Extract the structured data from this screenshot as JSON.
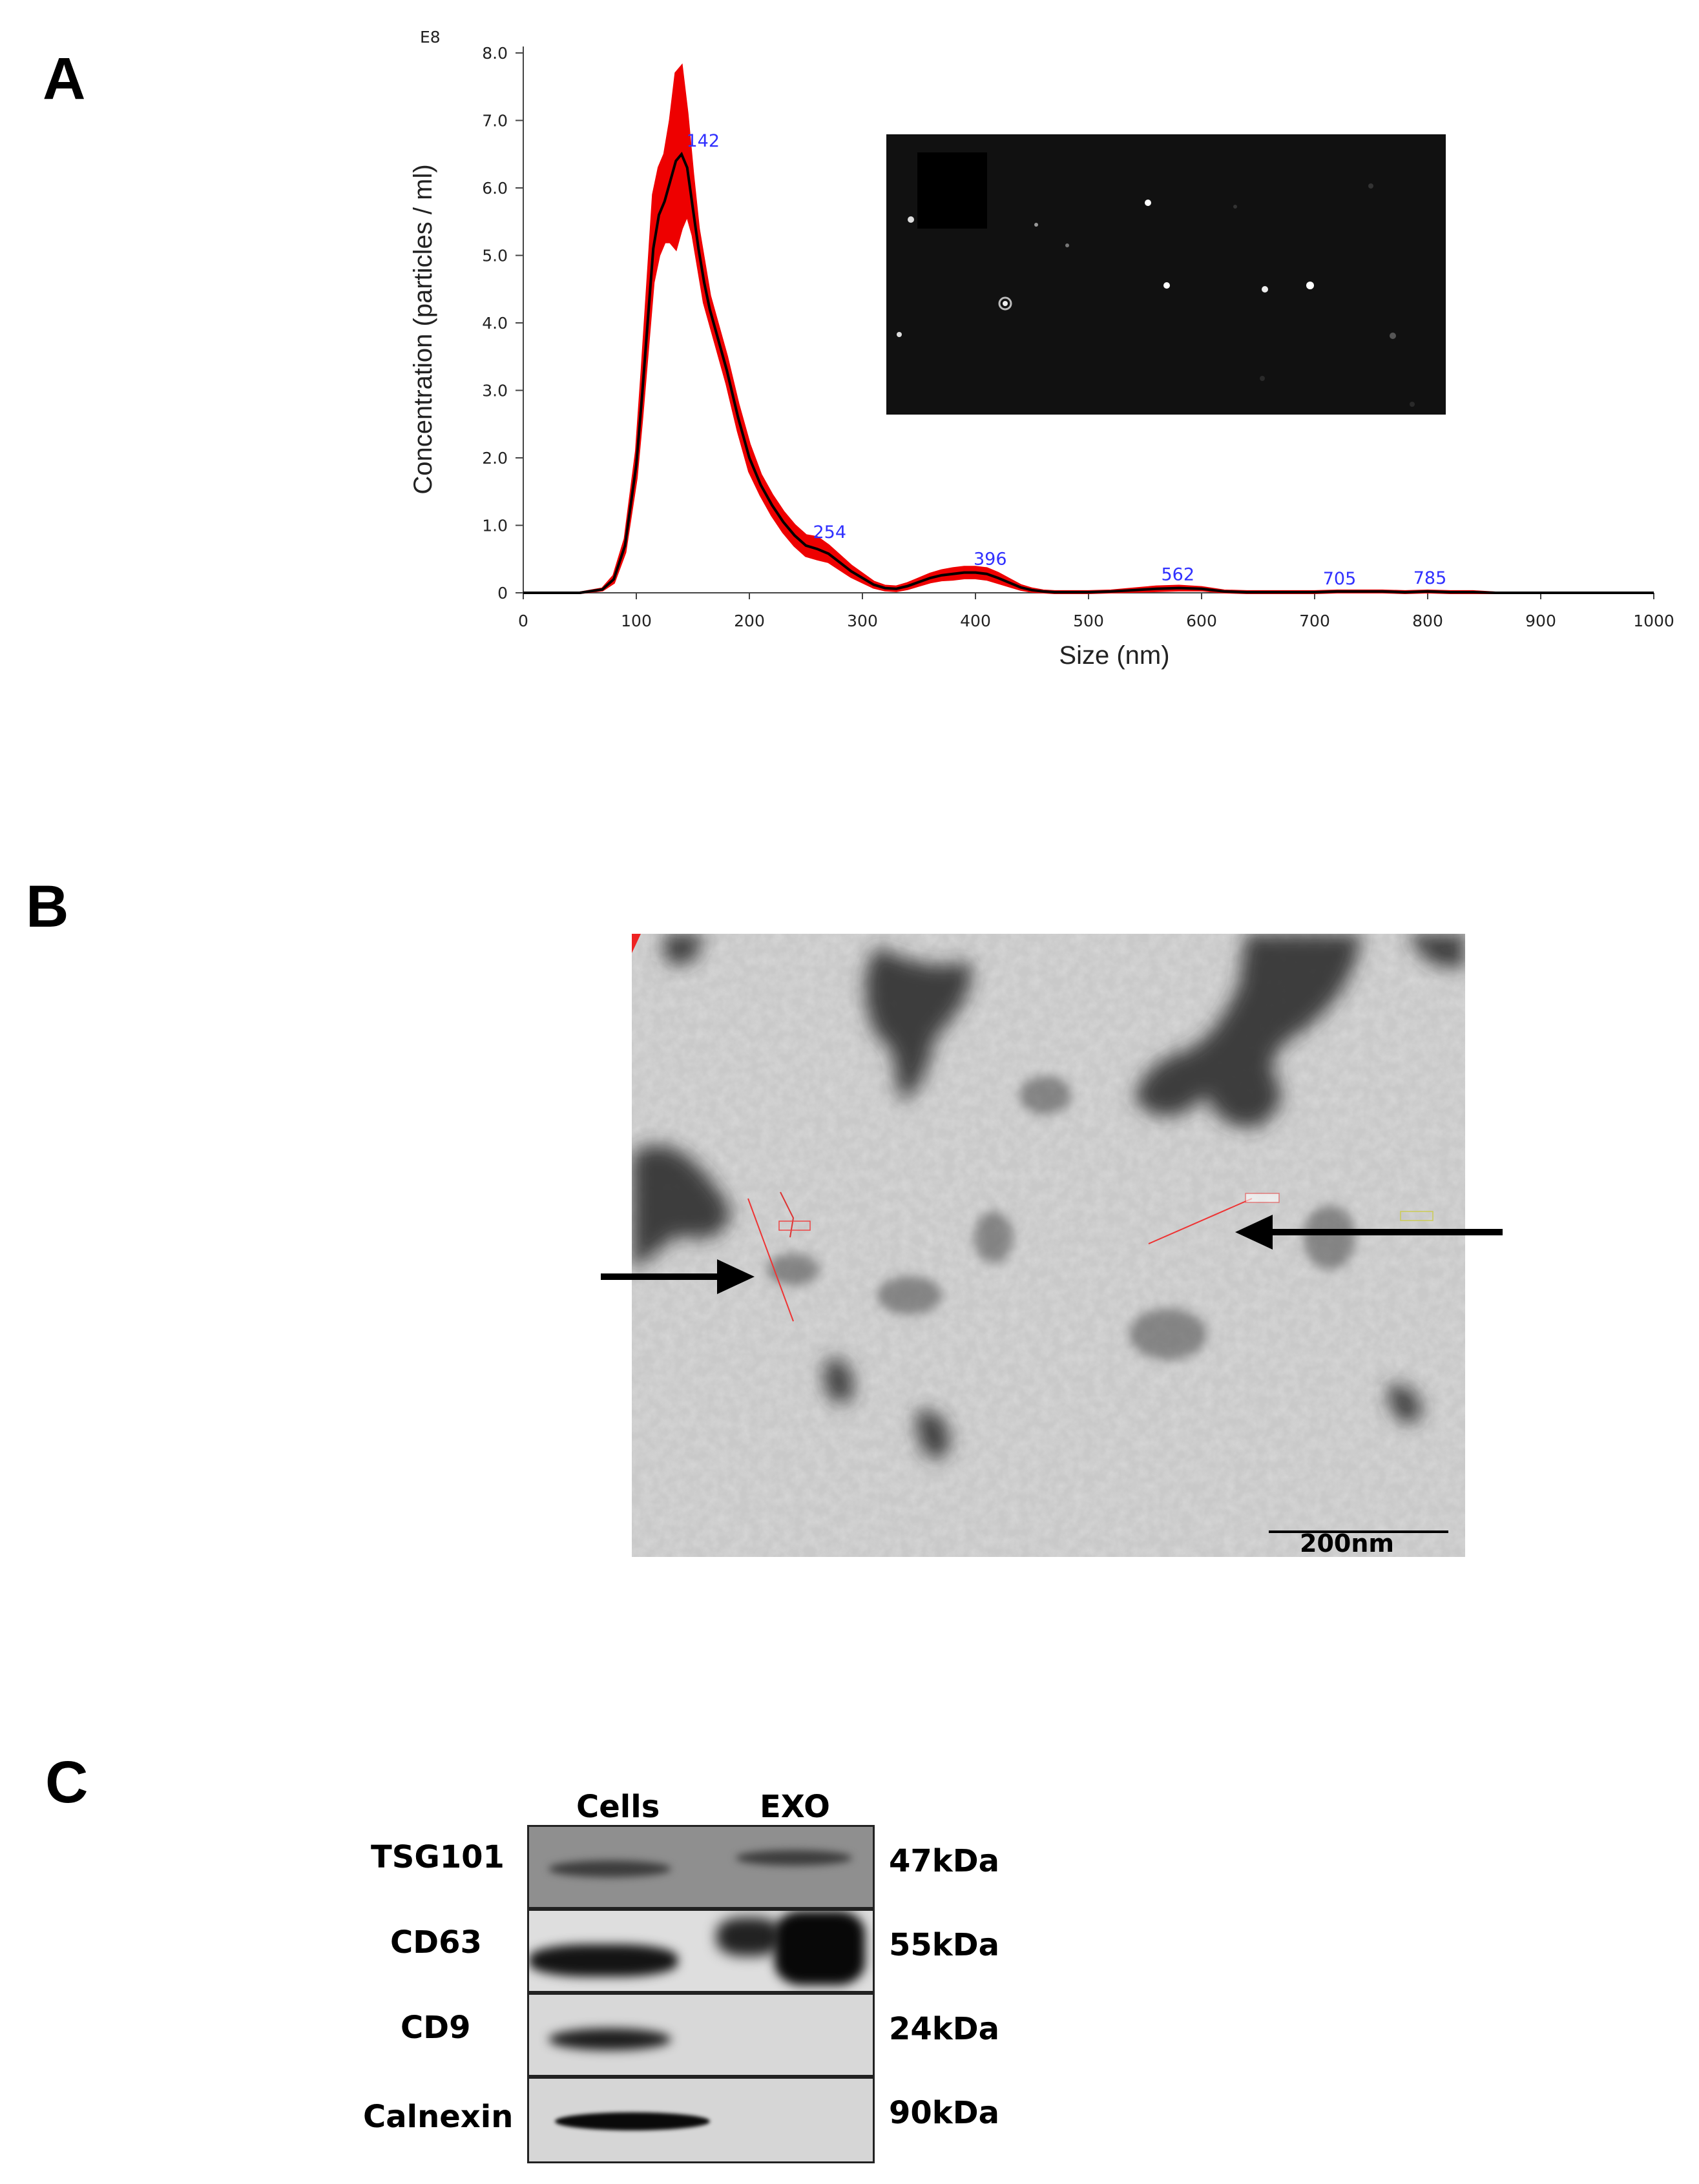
{
  "panel_labels": {
    "a": "A",
    "b": "B",
    "c": "C"
  },
  "chart_data": {
    "type": "line",
    "exponent_label": "E8",
    "xlabel": "Size (nm)",
    "ylabel": "Concentration (particles / ml)",
    "xlim": [
      0,
      1000
    ],
    "ylim": [
      0,
      8.0
    ],
    "x_ticks": [
      "0",
      "100",
      "200",
      "300",
      "400",
      "500",
      "600",
      "700",
      "800",
      "900",
      "1000"
    ],
    "y_ticks": [
      "0",
      "1.0",
      "2.0",
      "3.0",
      "4.0",
      "5.0",
      "6.0",
      "7.0",
      "8.0"
    ],
    "grid": false,
    "line_color": "#000000",
    "band_color": "#ee0000",
    "x": [
      0,
      50,
      70,
      80,
      90,
      100,
      105,
      110,
      115,
      120,
      125,
      130,
      135,
      140,
      145,
      150,
      155,
      160,
      165,
      170,
      180,
      190,
      200,
      210,
      220,
      230,
      240,
      250,
      260,
      270,
      280,
      290,
      300,
      310,
      320,
      330,
      340,
      350,
      360,
      370,
      380,
      390,
      400,
      410,
      420,
      430,
      440,
      450,
      460,
      470,
      480,
      500,
      520,
      540,
      560,
      580,
      600,
      620,
      640,
      660,
      680,
      700,
      720,
      740,
      760,
      780,
      800,
      820,
      840,
      860,
      880,
      900,
      950,
      1000
    ],
    "y": [
      0,
      0,
      0.05,
      0.2,
      0.7,
      1.9,
      2.9,
      4.0,
      5.1,
      5.6,
      5.8,
      6.1,
      6.4,
      6.5,
      6.3,
      5.7,
      5.1,
      4.6,
      4.2,
      3.9,
      3.3,
      2.6,
      2.0,
      1.6,
      1.3,
      1.05,
      0.85,
      0.7,
      0.65,
      0.58,
      0.45,
      0.32,
      0.22,
      0.12,
      0.07,
      0.06,
      0.1,
      0.16,
      0.22,
      0.26,
      0.28,
      0.3,
      0.3,
      0.28,
      0.22,
      0.15,
      0.08,
      0.04,
      0.02,
      0.01,
      0.01,
      0.01,
      0.02,
      0.04,
      0.06,
      0.07,
      0.06,
      0.02,
      0.01,
      0.01,
      0.01,
      0.01,
      0.02,
      0.02,
      0.02,
      0.01,
      0.02,
      0.01,
      0.01,
      0,
      0,
      0,
      0,
      0
    ],
    "y_upper": [
      0,
      0,
      0.06,
      0.25,
      0.8,
      2.1,
      3.3,
      4.6,
      5.9,
      6.3,
      6.5,
      7.0,
      7.7,
      7.8,
      7.1,
      6.2,
      5.4,
      4.9,
      4.4,
      4.1,
      3.5,
      2.8,
      2.2,
      1.75,
      1.45,
      1.2,
      1.0,
      0.85,
      0.82,
      0.7,
      0.55,
      0.4,
      0.28,
      0.16,
      0.1,
      0.09,
      0.14,
      0.21,
      0.28,
      0.33,
      0.36,
      0.38,
      0.38,
      0.36,
      0.29,
      0.2,
      0.11,
      0.06,
      0.03,
      0.02,
      0.02,
      0.02,
      0.03,
      0.06,
      0.09,
      0.1,
      0.08,
      0.03,
      0.02,
      0.02,
      0.02,
      0.02,
      0.03,
      0.03,
      0.03,
      0.02,
      0.03,
      0.02,
      0.02,
      0,
      0,
      0,
      0,
      0
    ],
    "y_lower": [
      0,
      0,
      0.04,
      0.15,
      0.6,
      1.7,
      2.6,
      3.6,
      4.6,
      5.0,
      5.2,
      5.2,
      5.1,
      5.4,
      5.6,
      5.3,
      4.8,
      4.3,
      4.0,
      3.7,
      3.1,
      2.4,
      1.8,
      1.45,
      1.15,
      0.9,
      0.7,
      0.55,
      0.5,
      0.46,
      0.35,
      0.24,
      0.16,
      0.08,
      0.04,
      0.03,
      0.06,
      0.11,
      0.16,
      0.19,
      0.2,
      0.22,
      0.22,
      0.2,
      0.15,
      0.1,
      0.05,
      0.02,
      0.01,
      0,
      0,
      0,
      0.01,
      0.02,
      0.03,
      0.04,
      0.04,
      0.01,
      0,
      0,
      0,
      0,
      0.01,
      0.01,
      0.01,
      0,
      0.01,
      0,
      0,
      0,
      0,
      0,
      0,
      0
    ],
    "peak_labels": [
      {
        "text": "142",
        "x": 142,
        "y": 6.5
      },
      {
        "text": "254",
        "x": 254,
        "y": 0.7
      },
      {
        "text": "396",
        "x": 396,
        "y": 0.3
      },
      {
        "text": "562",
        "x": 562,
        "y": 0.07
      },
      {
        "text": "705",
        "x": 705,
        "y": 0.01
      },
      {
        "text": "785",
        "x": 785,
        "y": 0.02
      }
    ]
  },
  "tem": {
    "scale_bar_label": "200nm"
  },
  "western_blot": {
    "columns": [
      "Cells",
      "EXO"
    ],
    "rows": [
      {
        "protein": "TSG101",
        "size": "47kDa"
      },
      {
        "protein": "CD63",
        "size": "55kDa"
      },
      {
        "protein": "CD9",
        "size": "24kDa"
      },
      {
        "protein": "Calnexin",
        "size": "90kDa"
      }
    ]
  }
}
